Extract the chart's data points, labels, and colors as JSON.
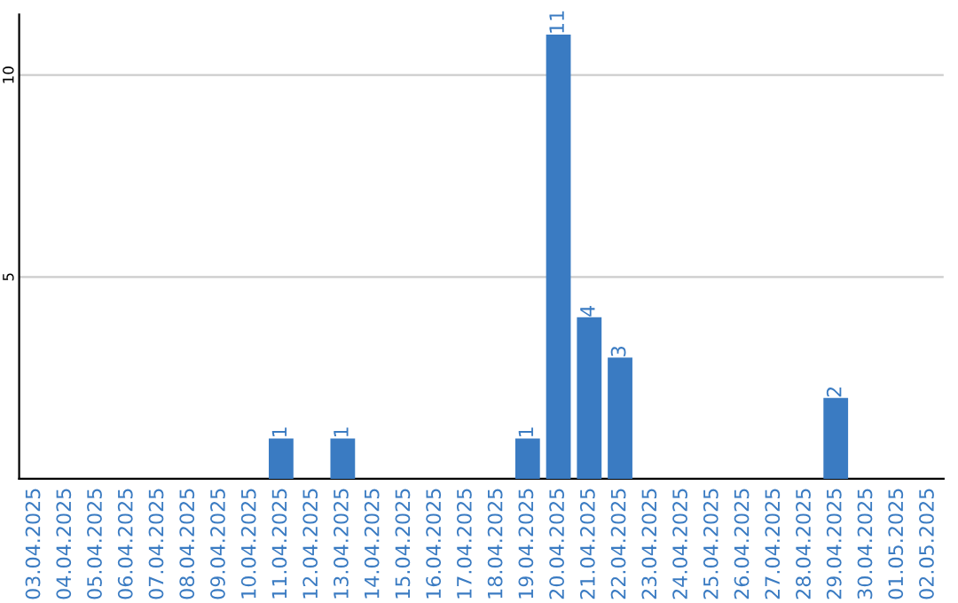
{
  "chart_data": {
    "type": "bar",
    "categories": [
      "03.04.2025",
      "04.04.2025",
      "05.04.2025",
      "06.04.2025",
      "07.04.2025",
      "08.04.2025",
      "09.04.2025",
      "10.04.2025",
      "11.04.2025",
      "12.04.2025",
      "13.04.2025",
      "14.04.2025",
      "15.04.2025",
      "16.04.2025",
      "17.04.2025",
      "18.04.2025",
      "19.04.2025",
      "20.04.2025",
      "21.04.2025",
      "22.04.2025",
      "23.04.2025",
      "24.04.2025",
      "25.04.2025",
      "26.04.2025",
      "27.04.2025",
      "28.04.2025",
      "29.04.2025",
      "30.04.2025",
      "01.05.2025",
      "02.05.2025"
    ],
    "values": [
      0,
      0,
      0,
      0,
      0,
      0,
      0,
      0,
      1,
      0,
      1,
      0,
      0,
      0,
      0,
      0,
      1,
      11,
      4,
      3,
      0,
      0,
      0,
      0,
      0,
      0,
      2,
      0,
      0,
      0
    ],
    "value_labels": [
      null,
      null,
      null,
      null,
      null,
      null,
      null,
      null,
      "1",
      null,
      "1",
      null,
      null,
      null,
      null,
      null,
      "1",
      "11",
      "4",
      "3",
      null,
      null,
      null,
      null,
      null,
      null,
      "2",
      null,
      null,
      null
    ],
    "color": "#3a7bc2",
    "ylim": [
      0,
      11.5
    ],
    "yticks": [
      5,
      10
    ],
    "grid": "y"
  }
}
